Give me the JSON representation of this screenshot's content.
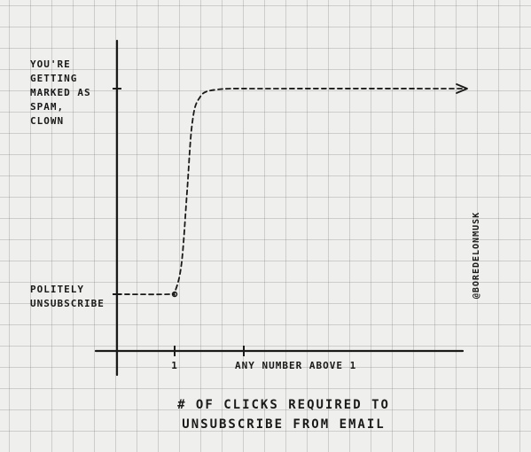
{
  "chart_data": {
    "type": "line",
    "title": "",
    "xlabel_lines": [
      "# OF CLICKS REQUIRED TO",
      "UNSUBSCRIBE FROM EMAIL"
    ],
    "ylabel": "",
    "x_ticks": [
      {
        "value": 1,
        "label": "1"
      },
      {
        "value": 2,
        "label": "ANY NUMBER ABOVE 1"
      }
    ],
    "y_ticks": [
      {
        "value": 0,
        "lines": [
          "POLITELY",
          "UNSUBSCRIBE"
        ]
      },
      {
        "value": 1,
        "lines": [
          "YOU'RE",
          "GETTING",
          "MARKED AS",
          "SPAM,",
          "CLOWN"
        ]
      }
    ],
    "xlim": [
      0,
      5.5
    ],
    "ylim": [
      -0.2,
      1.2
    ],
    "series": [
      {
        "line_style": "dashed",
        "arrow_end": true,
        "points": [
          [
            0,
            0
          ],
          [
            0.9,
            0
          ],
          [
            1.0,
            0.01
          ],
          [
            1.1,
            0.15
          ],
          [
            1.18,
            0.5
          ],
          [
            1.25,
            0.82
          ],
          [
            1.35,
            0.95
          ],
          [
            1.6,
            0.995
          ],
          [
            2.5,
            1.0
          ],
          [
            5.2,
            1.0
          ]
        ]
      }
    ],
    "credit": "@BOREDELONMUSK",
    "grid": true,
    "colors": {
      "ink": "#1a1a1a",
      "paper": "#efefed",
      "grid": "#b8b8b8"
    }
  }
}
